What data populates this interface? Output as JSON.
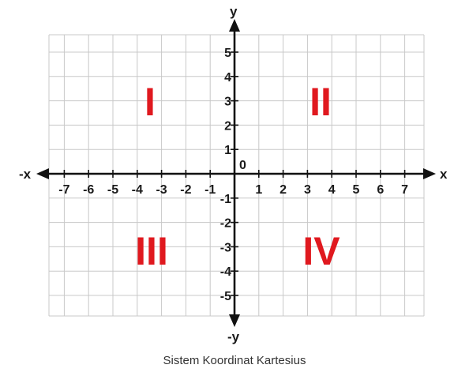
{
  "caption": "Sistem Koordinat Kartesius",
  "axes": {
    "x_positive_label": "x",
    "x_negative_label": "-x",
    "y_positive_label": "y",
    "y_negative_label": "-y",
    "origin_label": "0"
  },
  "x_ticks": [
    "-7",
    "-6",
    "-5",
    "-4",
    "-3",
    "-2",
    "-1",
    "1",
    "2",
    "3",
    "4",
    "5",
    "6",
    "7"
  ],
  "y_ticks": [
    "5",
    "4",
    "3",
    "2",
    "1",
    "-1",
    "-2",
    "-3",
    "-4",
    "-5"
  ],
  "quadrants": {
    "top_left": "I",
    "top_right": "II",
    "bottom_left": "III",
    "bottom_right": "IV"
  },
  "colors": {
    "quadrant_label": "#e0191f",
    "grid": "#c8c8c8",
    "axis": "#111111"
  }
}
